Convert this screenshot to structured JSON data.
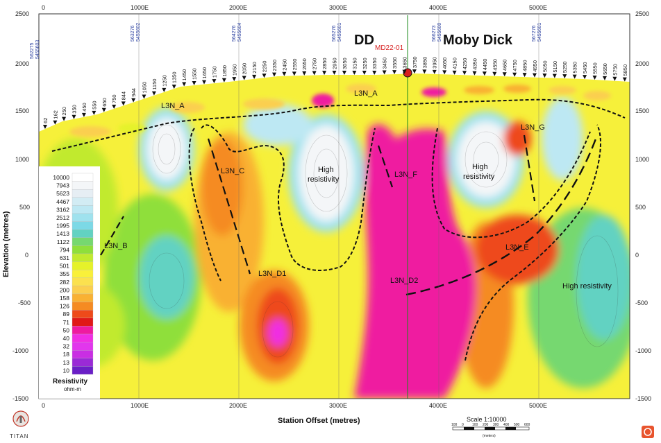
{
  "section": {
    "x_axis": {
      "title": "Station Offset (metres)",
      "top_labels": [
        "0",
        "1000E",
        "2000E",
        "3000E",
        "4000E",
        "5000E"
      ],
      "bottom_labels": [
        "0",
        "1000E",
        "2000E",
        "3000E",
        "4000E",
        "5000E"
      ]
    },
    "y_axis": {
      "title": "Elevation (metres)",
      "left_labels": [
        "2500",
        "2000",
        "1500",
        "1000",
        "500",
        "0",
        "-500",
        "-1000",
        "-1500"
      ],
      "right_labels": [
        "2500",
        "2000",
        "1500",
        "1000",
        "500",
        "0",
        "-500",
        "-1000",
        "-1500"
      ]
    },
    "grid_ids": [
      {
        "e": "562275",
        "n": "5455603"
      },
      {
        "e": "563276",
        "n": "5455602"
      },
      {
        "e": "564276",
        "n": "5455604"
      },
      {
        "e": "565276",
        "n": "5455601"
      },
      {
        "e": "566273",
        "n": "5455600"
      },
      {
        "e": "567276",
        "n": "5455601"
      }
    ],
    "stations": [
      "62",
      "162",
      "250",
      "350",
      "450",
      "550",
      "650",
      "750",
      "844",
      "944",
      "1050",
      "1150",
      "1250",
      "1350",
      "1450",
      "1550",
      "1650",
      "1750",
      "1850",
      "1950",
      "2050",
      "2150",
      "2250",
      "2350",
      "2450",
      "2550",
      "2650",
      "2750",
      "2850",
      "2950",
      "3050",
      "3150",
      "3250",
      "3350",
      "3450",
      "3550",
      "3650",
      "3750",
      "3850",
      "3950",
      "4050",
      "4150",
      "4250",
      "4350",
      "4450",
      "4550",
      "4650",
      "4750",
      "4850",
      "4950",
      "5050",
      "5150",
      "5250",
      "5350",
      "5450",
      "5550",
      "5650",
      "5750",
      "5850"
    ],
    "features": {
      "l3n_a_left": "L3N_A",
      "l3n_a_right": "L3N_A",
      "l3n_b": "L3N_B",
      "l3n_c": "L3N_C",
      "l3n_d1": "L3N_D1",
      "l3n_d2": "L3N_D2",
      "l3n_e": "L3N_E",
      "l3n_f": "L3N_F",
      "l3n_g": "L3N_G"
    },
    "high_res_1": [
      "High",
      "resistivity"
    ],
    "high_res_2": [
      "High",
      "resistivity"
    ],
    "high_res_3": "High resistivity",
    "dd_label": "DD",
    "drillhole": "MD22-01",
    "target": "Moby Dick",
    "legend": {
      "values": [
        "10000",
        "7943",
        "5623",
        "4467",
        "3162",
        "2512",
        "1995",
        "1413",
        "1122",
        "794",
        "631",
        "501",
        "355",
        "282",
        "200",
        "158",
        "126",
        "89",
        "71",
        "50",
        "40",
        "32",
        "18",
        "13",
        "10"
      ],
      "colors": [
        "#ffffff",
        "#f4f6f8",
        "#e6eef4",
        "#d2ecf4",
        "#bde8f3",
        "#9fe2ee",
        "#7cd9e6",
        "#62d2c2",
        "#76d86f",
        "#8fdf3b",
        "#c1ea2f",
        "#e5f22a",
        "#f9f03a",
        "#fbe14f",
        "#fbcf4f",
        "#f9b133",
        "#f58b22",
        "#ee4a1a",
        "#e01818",
        "#ef1aa0",
        "#f02ee3",
        "#e236ed",
        "#c92ee3",
        "#9a2ad6",
        "#6a1fc6"
      ],
      "title": "Resistivity",
      "unit": "ohm-m"
    },
    "scale": {
      "title": "Scale 1:10000",
      "ticks": [
        "100",
        "0",
        "100",
        "200",
        "300",
        "400",
        "500",
        "600"
      ],
      "unit": "(meters)"
    },
    "logo_text": "TITAN"
  }
}
